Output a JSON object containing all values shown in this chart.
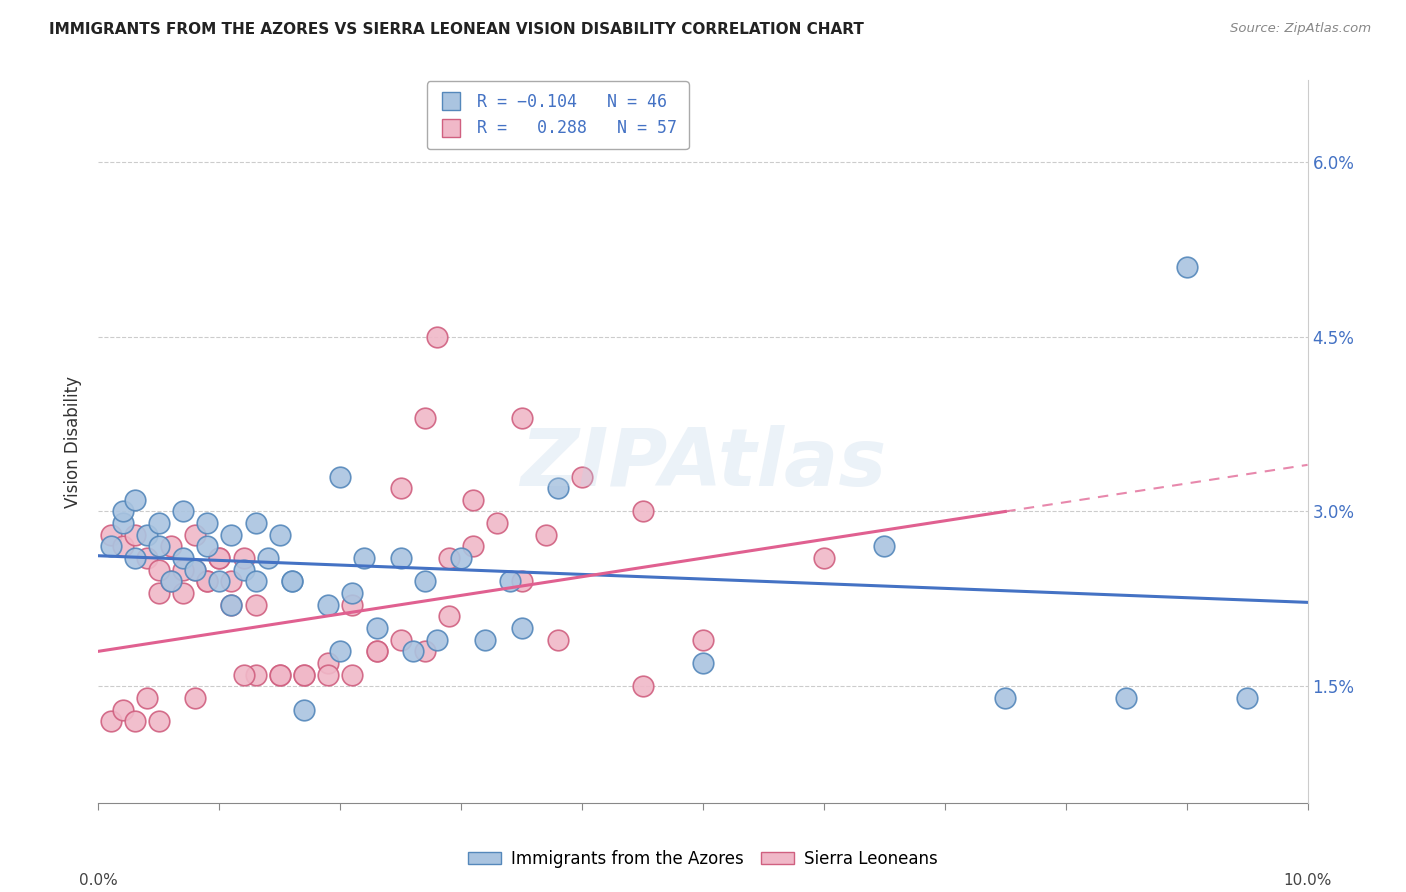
{
  "title": "IMMIGRANTS FROM THE AZORES VS SIERRA LEONEAN VISION DISABILITY CORRELATION CHART",
  "source": "Source: ZipAtlas.com",
  "ylabel": "Vision Disability",
  "x_min": 0.0,
  "x_max": 0.1,
  "y_min": 0.005,
  "y_max": 0.067,
  "ytick_vals": [
    0.015,
    0.03,
    0.045,
    0.06
  ],
  "ytick_labels": [
    "1.5%",
    "3.0%",
    "4.5%",
    "6.0%"
  ],
  "color_blue_fill": "#aac4e0",
  "color_blue_edge": "#5588bb",
  "color_pink_fill": "#f0b8c8",
  "color_pink_edge": "#d06080",
  "color_blue_line": "#4472c4",
  "color_pink_line": "#e06090",
  "blue_x": [
    0.001,
    0.002,
    0.003,
    0.004,
    0.005,
    0.006,
    0.007,
    0.008,
    0.009,
    0.01,
    0.011,
    0.012,
    0.013,
    0.014,
    0.015,
    0.016,
    0.002,
    0.003,
    0.005,
    0.007,
    0.009,
    0.011,
    0.013,
    0.016,
    0.019,
    0.021,
    0.022,
    0.025,
    0.027,
    0.03,
    0.034,
    0.038,
    0.02,
    0.023,
    0.026,
    0.028,
    0.032,
    0.035,
    0.05,
    0.065,
    0.075,
    0.085,
    0.09,
    0.095,
    0.02,
    0.017
  ],
  "blue_y": [
    0.027,
    0.029,
    0.026,
    0.028,
    0.027,
    0.024,
    0.026,
    0.025,
    0.027,
    0.024,
    0.022,
    0.025,
    0.024,
    0.026,
    0.028,
    0.024,
    0.03,
    0.031,
    0.029,
    0.03,
    0.029,
    0.028,
    0.029,
    0.024,
    0.022,
    0.023,
    0.026,
    0.026,
    0.024,
    0.026,
    0.024,
    0.032,
    0.018,
    0.02,
    0.018,
    0.019,
    0.019,
    0.02,
    0.017,
    0.027,
    0.014,
    0.014,
    0.051,
    0.014,
    0.033,
    0.013
  ],
  "pink_x": [
    0.001,
    0.002,
    0.003,
    0.004,
    0.005,
    0.006,
    0.007,
    0.008,
    0.009,
    0.01,
    0.011,
    0.012,
    0.001,
    0.002,
    0.003,
    0.004,
    0.005,
    0.006,
    0.007,
    0.008,
    0.009,
    0.01,
    0.011,
    0.013,
    0.015,
    0.017,
    0.019,
    0.021,
    0.023,
    0.025,
    0.027,
    0.029,
    0.031,
    0.033,
    0.035,
    0.037,
    0.04,
    0.045,
    0.05,
    0.06,
    0.013,
    0.015,
    0.017,
    0.019,
    0.021,
    0.023,
    0.025,
    0.027,
    0.029,
    0.031,
    0.035,
    0.038,
    0.045,
    0.028,
    0.005,
    0.008,
    0.012
  ],
  "pink_y": [
    0.012,
    0.013,
    0.012,
    0.014,
    0.023,
    0.024,
    0.023,
    0.025,
    0.024,
    0.026,
    0.024,
    0.026,
    0.028,
    0.027,
    0.028,
    0.026,
    0.025,
    0.027,
    0.025,
    0.028,
    0.024,
    0.026,
    0.022,
    0.022,
    0.016,
    0.016,
    0.017,
    0.016,
    0.018,
    0.019,
    0.018,
    0.021,
    0.027,
    0.029,
    0.024,
    0.028,
    0.033,
    0.03,
    0.019,
    0.026,
    0.016,
    0.016,
    0.016,
    0.016,
    0.022,
    0.018,
    0.032,
    0.038,
    0.026,
    0.031,
    0.038,
    0.019,
    0.015,
    0.045,
    0.012,
    0.014,
    0.016
  ],
  "blue_line_x0": 0.0,
  "blue_line_x1": 0.1,
  "blue_line_y0": 0.0262,
  "blue_line_y1": 0.0222,
  "pink_line_x0": 0.0,
  "pink_line_x1": 0.1,
  "pink_line_y0": 0.018,
  "pink_line_y1": 0.034
}
